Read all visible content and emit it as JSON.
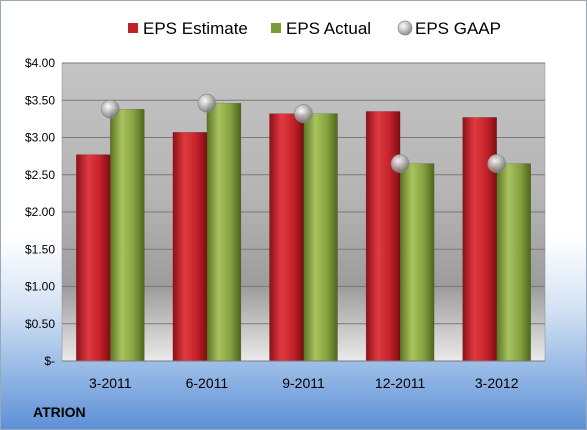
{
  "company": "ATRION",
  "chart_data": {
    "type": "bar",
    "categories": [
      "3-2011",
      "6-2011",
      "9-2011",
      "12-2011",
      "3-2012"
    ],
    "series": [
      {
        "name": "EPS Estimate",
        "kind": "bar",
        "color": "#c0222a",
        "values": [
          2.77,
          3.07,
          3.32,
          3.35,
          3.27
        ]
      },
      {
        "name": "EPS Actual",
        "kind": "bar",
        "color": "#7d9a3a",
        "values": [
          3.38,
          3.46,
          3.32,
          2.65,
          2.65
        ]
      },
      {
        "name": "EPS GAAP",
        "kind": "marker",
        "color": "#a8a8a8",
        "values": [
          3.38,
          3.46,
          3.32,
          2.65,
          2.65
        ]
      }
    ],
    "y_ticks": [
      "$-",
      "$0.50",
      "$1.00",
      "$1.50",
      "$2.00",
      "$2.50",
      "$3.00",
      "$3.50",
      "$4.00"
    ],
    "ylim": [
      0,
      4
    ],
    "grid": true,
    "legend": "top"
  }
}
